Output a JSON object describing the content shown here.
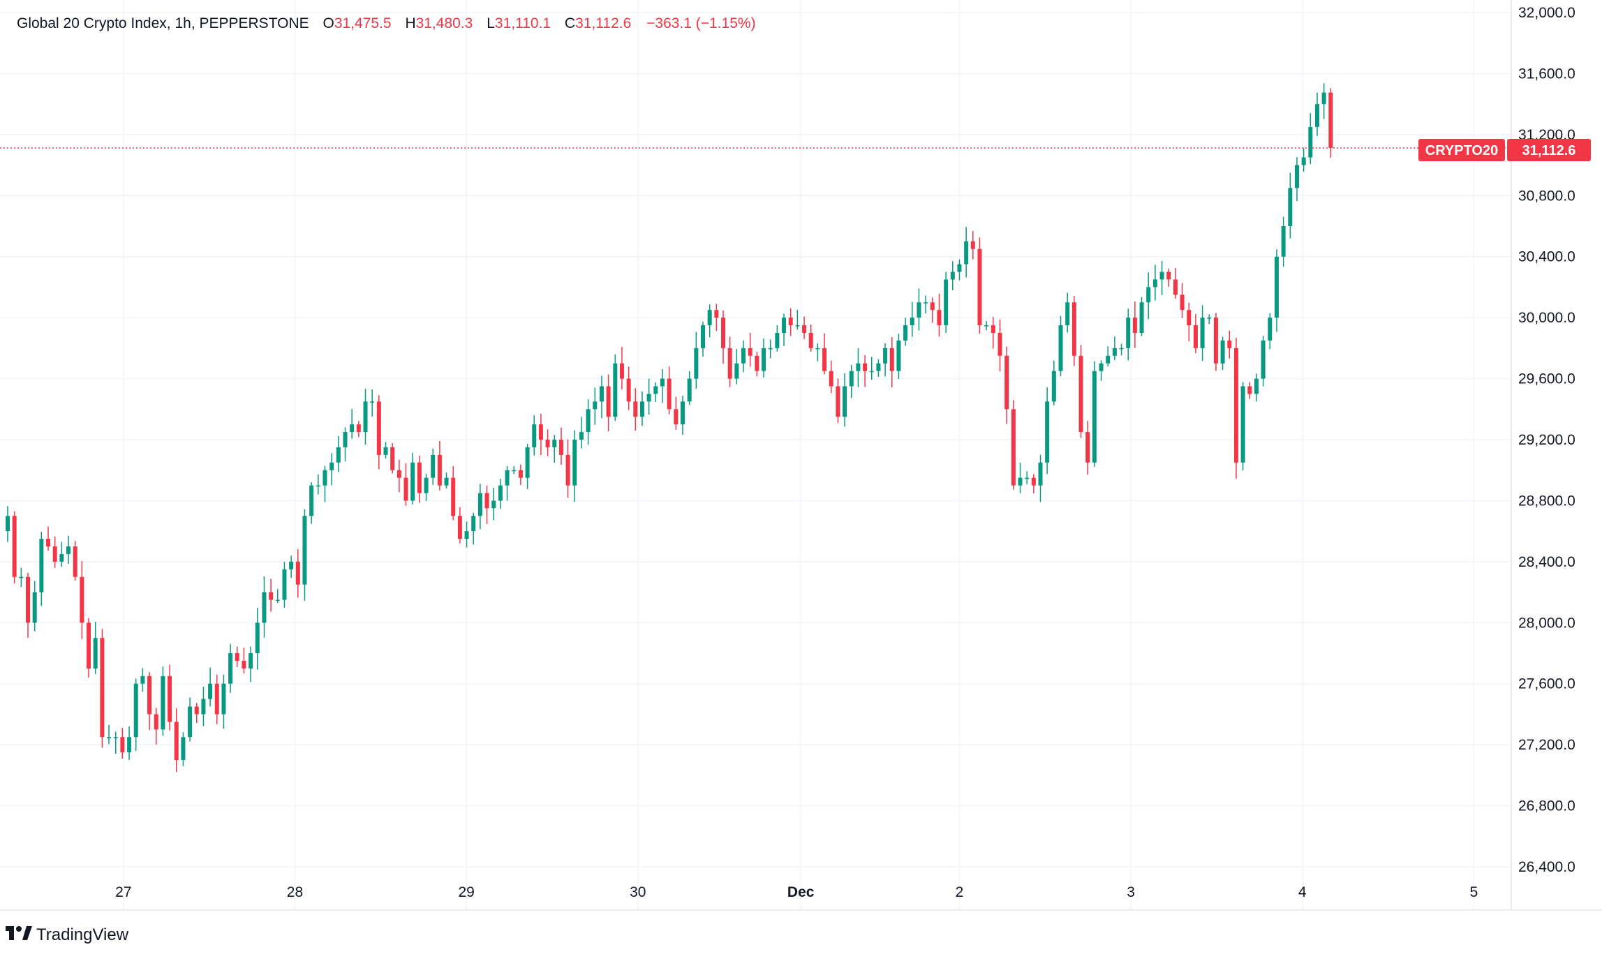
{
  "legend": {
    "symbol_name": "Global 20 Crypto Index, 1h, PEPPERSTONE",
    "o_label": "O",
    "o_value": "31,475.5",
    "h_label": "H",
    "h_value": "31,480.3",
    "l_label": "L",
    "l_value": "31,110.1",
    "c_label": "C",
    "c_value": "31,112.6",
    "change": "−363.1 (−1.15%)"
  },
  "price_tag": {
    "symbol": "CRYPTO20",
    "price": "31,112.6"
  },
  "branding": {
    "name": "TradingView"
  },
  "colors": {
    "up": "#089981",
    "down": "#f23645",
    "tag_bg": "#f23645",
    "text": "#131722"
  },
  "chart_data": {
    "type": "candlestick",
    "interval": "1h",
    "ylim": [
      26300,
      32100
    ],
    "y_ticks": [
      32000,
      31600,
      31200,
      30800,
      30400,
      30000,
      29600,
      29200,
      28800,
      28400,
      28000,
      27600,
      27200,
      26800,
      26400
    ],
    "y_tick_labels": [
      "32,000.0",
      "31,600.0",
      "31,200.0",
      "30,800.0",
      "30,400.0",
      "30,000.0",
      "29,600.0",
      "29,200.0",
      "28,800.0",
      "28,400.0",
      "28,000.0",
      "27,600.0",
      "27,200.0",
      "26,800.0",
      "26,400.0"
    ],
    "x_ticks": [
      {
        "label": "27",
        "bar": 27,
        "bold": false
      },
      {
        "label": "28",
        "bar": 67,
        "bold": false
      },
      {
        "label": "29",
        "bar": 107,
        "bold": false
      },
      {
        "label": "30",
        "bar": 147,
        "bold": false
      },
      {
        "label": "Dec",
        "bar": 185,
        "bold": true
      },
      {
        "label": "2",
        "bar": 222,
        "bold": false
      },
      {
        "label": "3",
        "bar": 262,
        "bold": false
      },
      {
        "label": "4",
        "bar": 302,
        "bold": false
      },
      {
        "label": "5",
        "bar": 342,
        "bold": false
      }
    ],
    "last_price": 31112.6,
    "closes": [
      28700,
      28300,
      28300,
      28000,
      28200,
      28550,
      28500,
      28400,
      28450,
      28500,
      28300,
      28000,
      27700,
      27900,
      27250,
      27250,
      27250,
      27150,
      27250,
      27600,
      27650,
      27400,
      27300,
      27650,
      27350,
      27100,
      27250,
      27450,
      27400,
      27500,
      27600,
      27400,
      27600,
      27800,
      27750,
      27700,
      27800,
      28000,
      28200,
      28150,
      28150,
      28350,
      28400,
      28250,
      28700,
      28900,
      28900,
      29000,
      29050,
      29150,
      29250,
      29300,
      29250,
      29450,
      29450,
      29100,
      29150,
      29000,
      28950,
      28800,
      29050,
      28850,
      28950,
      29100,
      28900,
      28950,
      28700,
      28550,
      28600,
      28700,
      28850,
      28750,
      28800,
      28900,
      29000,
      29000,
      28950,
      29150,
      29300,
      29200,
      29150,
      29200,
      29100,
      28900,
      29200,
      29250,
      29400,
      29450,
      29550,
      29350,
      29700,
      29600,
      29450,
      29350,
      29450,
      29500,
      29550,
      29600,
      29400,
      29300,
      29450,
      29600,
      29800,
      29950,
      30050,
      30000,
      29800,
      29600,
      29700,
      29800,
      29750,
      29650,
      29800,
      29800,
      29900,
      30000,
      29950,
      29950,
      29900,
      29800,
      29800,
      29650,
      29550,
      29350,
      29550,
      29650,
      29700,
      29650,
      29650,
      29700,
      29800,
      29650,
      29850,
      29950,
      30000,
      30100,
      30100,
      30050,
      29950,
      30250,
      30300,
      30350,
      30500,
      30450,
      29950,
      29950,
      29900,
      29750,
      29400,
      28900,
      28950,
      28950,
      28900,
      29050,
      29450,
      29650,
      29950,
      30100,
      29750,
      29250,
      29050,
      29650,
      29700,
      29750,
      29800,
      29800,
      30000,
      29900,
      30100,
      30200,
      30250,
      30300,
      30250,
      30150,
      30050,
      29950,
      29800,
      30000,
      30000,
      29700,
      29850,
      29800,
      29050,
      29550,
      29500,
      29600,
      29850,
      30000,
      30400,
      30600,
      30850,
      31000,
      31050,
      31250,
      31400,
      31475.5,
      31112.6
    ],
    "n_bars": 346
  }
}
